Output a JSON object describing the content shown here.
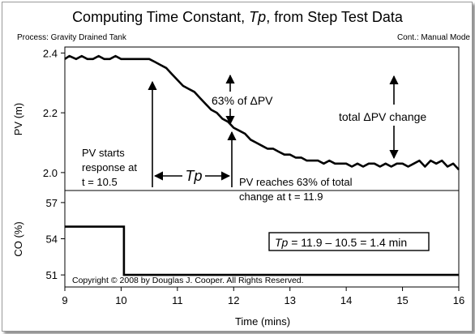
{
  "title_main": "Computing Time Constant, ",
  "title_tp": "Tp",
  "title_rest": ", from Step Test Data",
  "header_left": "Process: Gravity Drained Tank",
  "header_right": "Cont.: Manual Mode",
  "pv_ylabel": "PV (m)",
  "co_ylabel": "CO (%)",
  "xlabel": "Time (mins)",
  "copyright": "Copyright © 2008 by Douglas J. Cooper. All Rights Reserved.",
  "annotations": {
    "pv_starts_1": "PV starts",
    "pv_starts_2": "response at",
    "pv_starts_3": "t = 10.5",
    "tp_label": "Tp",
    "reaches_1": "PV reaches 63% of total",
    "reaches_2": "change at  t = 11.9",
    "pct63": "63% of ΔPV",
    "total": "total ΔPV change",
    "eq_tp": "Tp",
    "eq_rest": " = 11.9 – 10.5 = 1.4 min"
  },
  "chart_data": [
    {
      "type": "line",
      "panel": "PV",
      "xlabel": "Time (mins)",
      "ylabel": "PV (m)",
      "xlim": [
        9,
        16
      ],
      "ylim": [
        1.94,
        2.42
      ],
      "x_ticks": [
        "9",
        "10",
        "11",
        "12",
        "13",
        "14",
        "15",
        "16"
      ],
      "y_ticks": [
        "2.0",
        "2.2",
        "2.4"
      ],
      "grid": false,
      "series": [
        {
          "x": [
            9.0,
            9.08,
            9.2,
            9.3,
            9.4,
            9.5,
            9.6,
            9.7,
            9.8,
            9.9,
            10.0,
            10.1,
            10.2,
            10.3,
            10.4,
            10.5,
            10.6,
            10.7,
            10.8,
            10.9,
            11.0,
            11.1,
            11.2,
            11.3,
            11.4,
            11.5,
            11.6,
            11.7,
            11.8,
            11.9,
            12.0,
            12.1,
            12.2,
            12.3,
            12.4,
            12.5,
            12.6,
            12.7,
            12.8,
            12.9,
            13.0,
            13.1,
            13.2,
            13.3,
            13.4,
            13.5,
            13.6,
            13.7,
            13.8,
            13.9,
            14.0,
            14.1,
            14.2,
            14.3,
            14.4,
            14.5,
            14.6,
            14.7,
            14.8,
            14.9,
            15.0,
            15.1,
            15.2,
            15.3,
            15.4,
            15.5,
            15.6,
            15.7,
            15.8,
            15.9,
            16.0
          ],
          "y": [
            2.38,
            2.39,
            2.38,
            2.39,
            2.38,
            2.38,
            2.39,
            2.38,
            2.38,
            2.39,
            2.38,
            2.38,
            2.38,
            2.38,
            2.38,
            2.38,
            2.37,
            2.36,
            2.35,
            2.33,
            2.31,
            2.29,
            2.28,
            2.27,
            2.25,
            2.23,
            2.21,
            2.2,
            2.18,
            2.17,
            2.15,
            2.14,
            2.13,
            2.11,
            2.1,
            2.09,
            2.08,
            2.08,
            2.07,
            2.06,
            2.06,
            2.05,
            2.05,
            2.04,
            2.04,
            2.04,
            2.03,
            2.04,
            2.03,
            2.03,
            2.03,
            2.02,
            2.03,
            2.02,
            2.03,
            2.03,
            2.02,
            2.03,
            2.02,
            2.03,
            2.03,
            2.02,
            2.03,
            2.04,
            2.02,
            2.04,
            2.03,
            2.04,
            2.02,
            2.03,
            2.01
          ]
        }
      ]
    },
    {
      "type": "line",
      "panel": "CO",
      "xlabel": "Time (mins)",
      "ylabel": "CO (%)",
      "xlim": [
        9,
        16
      ],
      "ylim": [
        50,
        58
      ],
      "x_ticks": [
        "9",
        "10",
        "11",
        "12",
        "13",
        "14",
        "15",
        "16"
      ],
      "y_ticks": [
        "51",
        "54",
        "57"
      ],
      "grid": false,
      "series": [
        {
          "x": [
            9.0,
            10.05,
            10.05,
            10.1,
            16.0
          ],
          "y": [
            55,
            55,
            51,
            51,
            51
          ]
        }
      ]
    }
  ]
}
